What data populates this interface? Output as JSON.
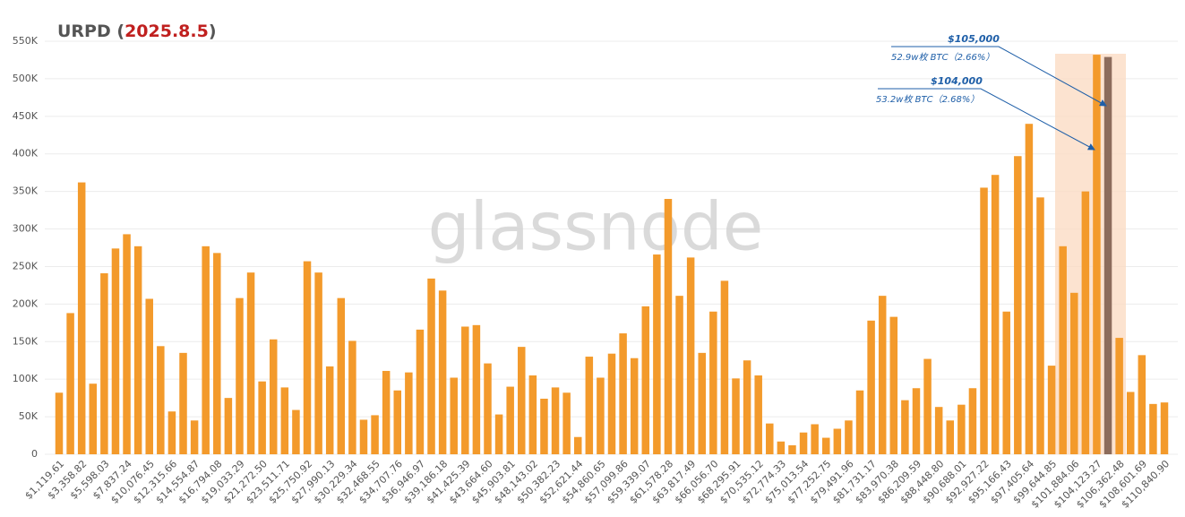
{
  "chart_data": {
    "type": "bar",
    "title_parts": [
      "URPD (",
      "2025.8.5",
      ")"
    ],
    "watermark": "glassnode",
    "categories": [
      "$1,119.61",
      null,
      "$3,358.82",
      null,
      "$5,598.03",
      null,
      "$7,837.24",
      null,
      "$10,076.45",
      null,
      "$12,315.66",
      null,
      "$14,554.87",
      null,
      "$16,794.08",
      null,
      "$19,033.29",
      null,
      "$21,272.50",
      null,
      "$23,511.71",
      null,
      "$25,750.92",
      null,
      "$27,990.13",
      null,
      "$30,229.34",
      null,
      "$32,468.55",
      null,
      "$34,707.76",
      null,
      "$36,946.97",
      null,
      "$39,186.18",
      null,
      "$41,425.39",
      null,
      "$43,664.60",
      null,
      "$45,903.81",
      null,
      "$48,143.02",
      null,
      "$50,382.23",
      null,
      "$52,621.44",
      null,
      "$54,860.65",
      null,
      "$57,099.86",
      null,
      "$59,339.07",
      null,
      "$61,578.28",
      null,
      "$63,817.49",
      null,
      "$66,056.70",
      null,
      "$68,295.91",
      null,
      "$70,535.12",
      null,
      "$72,774.33",
      null,
      "$75,013.54",
      null,
      "$77,252.75",
      null,
      "$79,491.96",
      null,
      "$81,731.17",
      null,
      "$83,970.38",
      null,
      "$86,209.59",
      null,
      "$88,448.80",
      null,
      "$90,688.01",
      null,
      "$92,927.22",
      null,
      "$95,166.43",
      null,
      "$97,405.64",
      null,
      "$99,644.85",
      null,
      "$101,884.06",
      null,
      "$104,123.27",
      null,
      "$106,362.48",
      null,
      "$108,601.69",
      null,
      "$110,840.90"
    ],
    "values": [
      82000,
      188000,
      362000,
      94000,
      241000,
      274000,
      293000,
      277000,
      207000,
      144000,
      57000,
      135000,
      45000,
      277000,
      268000,
      75000,
      208000,
      242000,
      97000,
      153000,
      89000,
      59000,
      257000,
      242000,
      117000,
      208000,
      151000,
      46000,
      52000,
      111000,
      85000,
      109000,
      166000,
      234000,
      218000,
      102000,
      170000,
      172000,
      121000,
      53000,
      90000,
      143000,
      105000,
      74000,
      89000,
      82000,
      23000,
      130000,
      102000,
      134000,
      161000,
      128000,
      197000,
      266000,
      340000,
      211000,
      262000,
      135000,
      190000,
      231000,
      101000,
      125000,
      105000,
      41000,
      17000,
      12000,
      29000,
      40000,
      22000,
      34000,
      45000,
      85000,
      178000,
      211000,
      183000,
      72000,
      88000,
      127000,
      63000,
      45000,
      66000,
      88000,
      355000,
      372000,
      190000,
      397000,
      440000,
      342000,
      118000,
      277000,
      215000,
      350000,
      532000,
      529000,
      155000,
      83000,
      132000,
      67000,
      69000
    ],
    "colors": [
      "#f39a2b",
      "#f39a2b",
      "#f39a2b",
      "#f39a2b",
      "#f39a2b",
      "#f39a2b",
      "#f39a2b",
      "#f39a2b",
      "#f39a2b",
      "#f39a2b",
      "#f39a2b",
      "#f39a2b",
      "#f39a2b",
      "#f39a2b",
      "#f39a2b",
      "#f39a2b",
      "#f39a2b",
      "#f39a2b",
      "#f39a2b",
      "#f39a2b",
      "#f39a2b",
      "#f39a2b",
      "#f39a2b",
      "#f39a2b",
      "#f39a2b",
      "#f39a2b",
      "#f39a2b",
      "#f39a2b",
      "#f39a2b",
      "#f39a2b",
      "#f39a2b",
      "#f39a2b",
      "#f39a2b",
      "#f39a2b",
      "#f39a2b",
      "#f39a2b",
      "#f39a2b",
      "#f39a2b",
      "#f39a2b",
      "#f39a2b",
      "#f39a2b",
      "#f39a2b",
      "#f39a2b",
      "#f39a2b",
      "#f39a2b",
      "#f39a2b",
      "#f39a2b",
      "#f39a2b",
      "#f39a2b",
      "#f39a2b",
      "#f39a2b",
      "#f39a2b",
      "#f39a2b",
      "#f39a2b",
      "#f39a2b",
      "#f39a2b",
      "#f39a2b",
      "#f39a2b",
      "#f39a2b",
      "#f39a2b",
      "#f39a2b",
      "#f39a2b",
      "#f39a2b",
      "#f39a2b",
      "#f39a2b",
      "#f39a2b",
      "#f39a2b",
      "#f39a2b",
      "#f39a2b",
      "#f39a2b",
      "#f39a2b",
      "#f39a2b",
      "#f39a2b",
      "#f39a2b",
      "#f39a2b",
      "#f39a2b",
      "#f39a2b",
      "#f39a2b",
      "#f39a2b",
      "#f39a2b",
      "#f39a2b",
      "#f39a2b",
      "#f39a2b",
      "#f39a2b",
      "#f39a2b",
      "#f39a2b",
      "#f39a2b",
      "#f39a2b",
      "#f39a2b",
      "#f39a2b",
      "#f39a2b",
      "#f39a2b",
      "#f39a2b",
      "#8c6c5c",
      "#f39a2b",
      "#f39a2b",
      "#f39a2b",
      "#f39a2b",
      "#f39a2b"
    ],
    "ylim": [
      0,
      550000
    ],
    "yticks": [
      0,
      {
        "value": 50000,
        "label": "50K"
      },
      {
        "value": 100000,
        "label": "100K"
      },
      {
        "value": 150000,
        "label": "150K"
      },
      {
        "value": 200000,
        "label": "200K"
      },
      {
        "value": 250000,
        "label": "250K"
      },
      {
        "value": 300000,
        "label": "300K"
      },
      {
        "value": 350000,
        "label": "350K"
      },
      {
        "value": 400000,
        "label": "400K"
      },
      {
        "value": 450000,
        "label": "450K"
      },
      {
        "value": 500000,
        "label": "500K"
      },
      {
        "value": 550000,
        "label": "550K"
      }
    ],
    "grid": true,
    "annotations": [
      {
        "price": "$105,000",
        "detail": "52.9w枚 BTC（2.66%）"
      },
      {
        "price": "$104,000",
        "detail": "53.2w枚 BTC（2.68%）"
      }
    ]
  }
}
